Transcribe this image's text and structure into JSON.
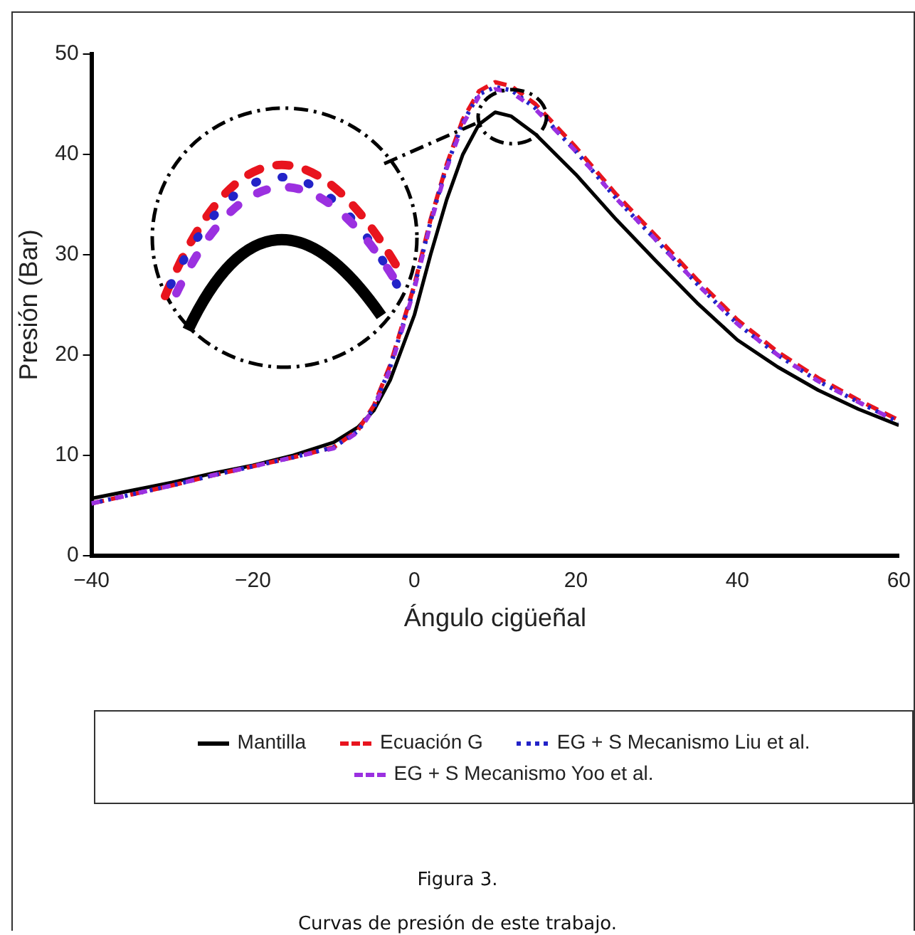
{
  "chart_data": {
    "type": "line",
    "xlabel": "Ángulo cigüeñal",
    "ylabel": "Presión (Bar)",
    "x": [
      -40,
      -35,
      -30,
      -25,
      -20,
      -15,
      -10,
      -7,
      -5,
      -3,
      0,
      2,
      4,
      6,
      8,
      10,
      12,
      15,
      20,
      25,
      30,
      35,
      40,
      45,
      50,
      55,
      60
    ],
    "series": [
      {
        "name": "Mantilla",
        "color": "#000000",
        "line_style": "solid",
        "values": [
          5.7,
          6.5,
          7.3,
          8.2,
          9.0,
          10.0,
          11.3,
          12.8,
          14.5,
          17.5,
          24,
          30,
          35.5,
          40,
          43,
          44.2,
          43.8,
          42,
          38,
          33.5,
          29.3,
          25.2,
          21.5,
          18.8,
          16.5,
          14.6,
          13
        ]
      },
      {
        "name": "Ecuación G",
        "color": "#e8141e",
        "line_style": "dashed",
        "values": [
          5.2,
          6.1,
          7.0,
          8.0,
          8.9,
          9.8,
          10.8,
          12.5,
          15,
          19,
          27,
          33.5,
          39,
          43.5,
          46.3,
          47.2,
          46.8,
          45,
          40.7,
          36,
          31.8,
          27.5,
          23.5,
          20.3,
          17.7,
          15.5,
          13.5
        ]
      },
      {
        "name": "EG + S Mecanismo Liu et al.",
        "color": "#2323c8",
        "line_style": "dotted",
        "values": [
          5.2,
          6.1,
          7.0,
          8.0,
          8.9,
          9.8,
          10.8,
          12.4,
          14.8,
          18.8,
          26.8,
          33.3,
          38.8,
          43.2,
          46,
          46.7,
          46.4,
          44.6,
          40.3,
          35.6,
          31.4,
          27.1,
          23.1,
          20,
          17.4,
          15.3,
          13.3
        ]
      },
      {
        "name": "EG + S Mecanismo Yoo et al.",
        "color": "#9b30e0",
        "line_style": "dashed",
        "values": [
          5.2,
          6.1,
          7.0,
          8.0,
          8.9,
          9.8,
          10.7,
          12.3,
          14.7,
          18.6,
          26.6,
          33.1,
          38.6,
          43,
          45.8,
          46.5,
          46.2,
          44.5,
          40.3,
          35.6,
          31.4,
          27.1,
          23.1,
          20,
          17.4,
          15.3,
          13.3
        ]
      }
    ],
    "xlim": [
      -40,
      60
    ],
    "xticks": [
      {
        "value": -40,
        "label": "−40"
      },
      {
        "value": -20,
        "label": "−20"
      },
      0,
      20,
      40,
      60
    ],
    "ylim": [
      0,
      50
    ],
    "yticks": [
      0,
      10,
      20,
      30,
      40,
      50
    ],
    "marker": "none",
    "legend": "bottom",
    "annotations": [
      "Figura 3.",
      "Curvas de presión de este trabajo."
    ]
  }
}
